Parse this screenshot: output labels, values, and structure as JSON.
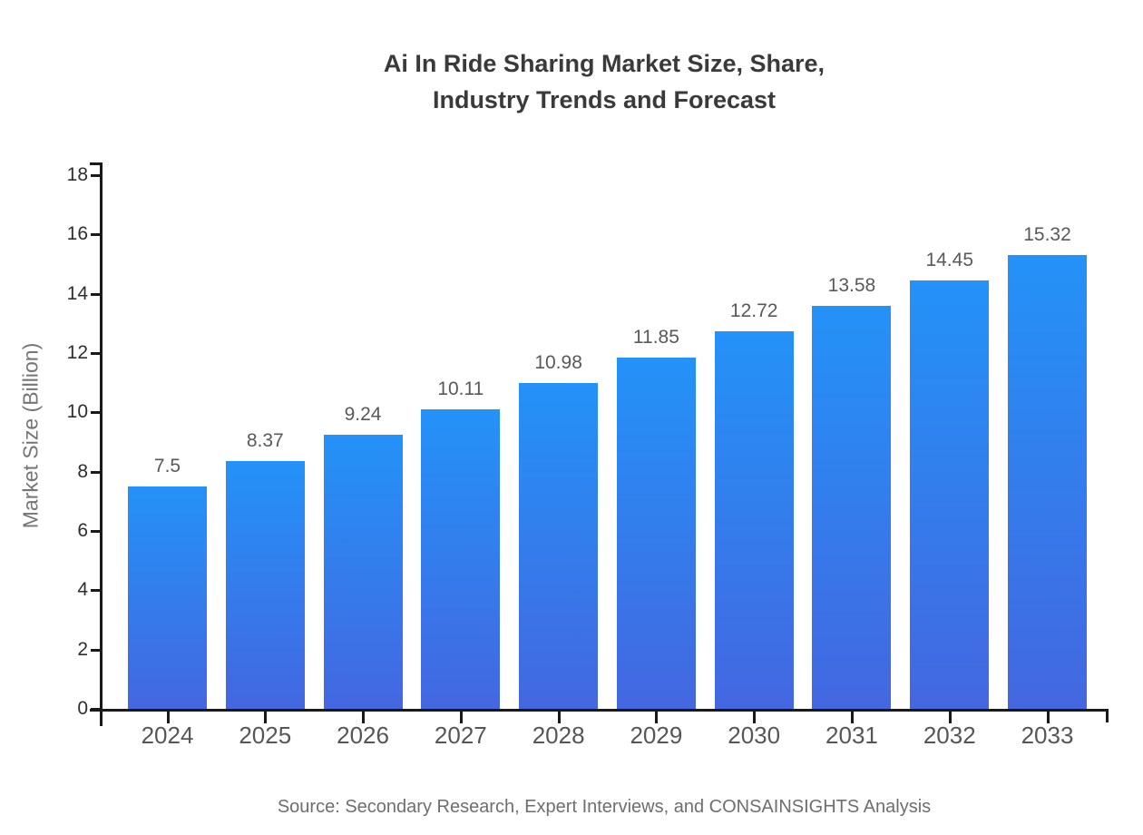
{
  "title_lines": [
    "Ai In Ride Sharing Market Size, Share,",
    "Industry Trends and Forecast"
  ],
  "source_note": "Source: Secondary Research, Expert Interviews, and CONSAINSIGHTS Analysis",
  "chart_data": {
    "type": "bar",
    "title": "Ai In Ride Sharing Market Size, Share, Industry Trends and Forecast",
    "categories": [
      "2024",
      "2025",
      "2026",
      "2027",
      "2028",
      "2029",
      "2030",
      "2031",
      "2032",
      "2033"
    ],
    "values": [
      7.5,
      8.37,
      9.24,
      10.11,
      10.98,
      11.85,
      12.72,
      13.58,
      14.45,
      15.32
    ],
    "value_labels": [
      "7.5",
      "8.37",
      "9.24",
      "10.11",
      "10.98",
      "11.85",
      "12.72",
      "13.58",
      "14.45",
      "15.32"
    ],
    "xlabel": "",
    "ylabel": "Market Size (Billion)",
    "ylim": [
      0,
      18
    ],
    "yticks": [
      0,
      2,
      4,
      6,
      8,
      10,
      12,
      14,
      16,
      18
    ],
    "grid": false,
    "legend": "none",
    "colors": {
      "bar_gradient_top": "#2492f8",
      "bar_gradient_bottom": "#4467e0",
      "axis": "#1a1a1a",
      "ytick_label": "#2e2e2e",
      "xtick_label": "#565656",
      "value_label": "#595959",
      "title": "#3a3a3a",
      "axis_title": "#757575",
      "source": "#6e6e6e"
    }
  }
}
